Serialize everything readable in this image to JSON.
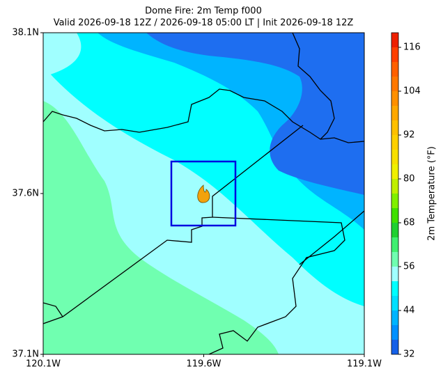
{
  "chart_data": {
    "type": "contour_map",
    "title": "Dome Fire: 2m Temp f000",
    "subtitle": "Valid 2026-09-18 12Z / 2026-09-18 05:00 LT | Init 2026-09-18 12Z",
    "xlim": [
      -120.1,
      -119.1
    ],
    "xticks": [
      {
        "value": -120.1,
        "label": "120.1W"
      },
      {
        "value": -119.6,
        "label": "119.6W"
      },
      {
        "value": -119.1,
        "label": "119.1W"
      }
    ],
    "ylim": [
      37.1,
      38.1
    ],
    "yticks": [
      {
        "value": 37.1,
        "label": "37.1N"
      },
      {
        "value": 37.6,
        "label": "37.6N"
      },
      {
        "value": 38.1,
        "label": "38.1N"
      }
    ],
    "colorbar_label": "2m Temperature (°F)",
    "clim": [
      32,
      120
    ],
    "cticks": [
      32,
      44,
      56,
      68,
      80,
      92,
      104,
      116
    ],
    "levels": [
      32,
      36,
      40,
      44,
      48,
      52,
      56,
      60,
      64,
      68,
      72,
      76,
      80,
      84,
      88,
      92,
      96,
      100,
      104,
      108,
      112,
      116,
      120
    ],
    "colors": [
      "#1560e8",
      "#0090ff",
      "#00b4ff",
      "#00e0ff",
      "#00ffff",
      "#a0ffff",
      "#70ffb0",
      "#40f070",
      "#20d030",
      "#40e000",
      "#80f000",
      "#c0f000",
      "#f0f000",
      "#f8e000",
      "#ffd000",
      "#ffc000",
      "#ffa800",
      "#ff9000",
      "#ff7800",
      "#ff6000",
      "#ff4000",
      "#ee2000"
    ]
  }
}
